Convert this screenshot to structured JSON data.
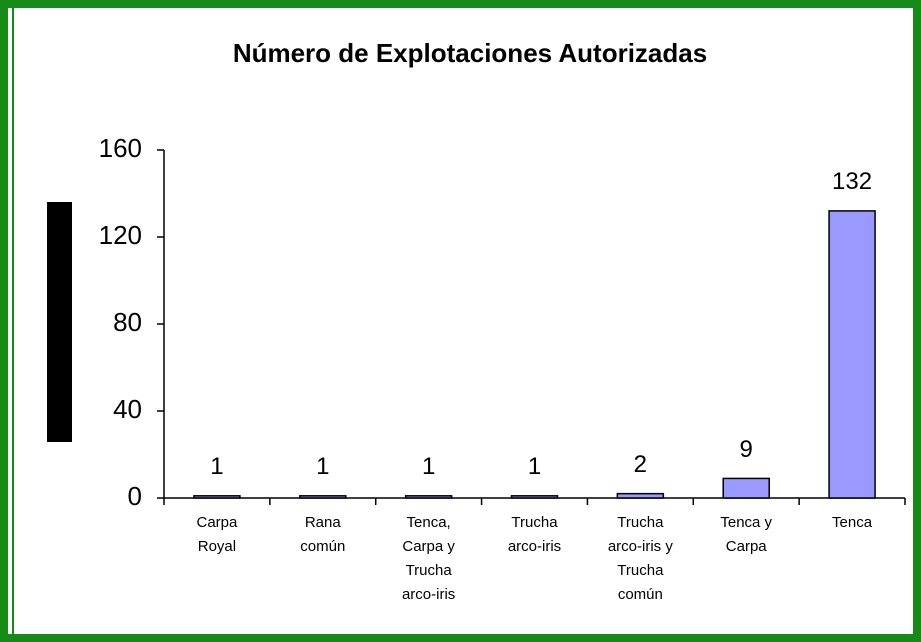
{
  "chart_data": {
    "type": "bar",
    "title": "Número de Explotaciones Autorizadas",
    "categories": [
      [
        "Carpa",
        "Royal"
      ],
      [
        "Rana",
        "común"
      ],
      [
        "Tenca,",
        "Carpa y",
        "Trucha",
        "arco-iris"
      ],
      [
        "Trucha",
        "arco-iris"
      ],
      [
        "Trucha",
        "arco-iris y",
        "Trucha",
        "común"
      ],
      [
        "Tenca y",
        "Carpa"
      ],
      [
        "Tenca"
      ]
    ],
    "values": [
      1,
      1,
      1,
      1,
      2,
      9,
      132
    ],
    "color": "#9999ff",
    "ylim": [
      0,
      160
    ],
    "yticks": [
      0,
      40,
      80,
      120,
      160
    ]
  }
}
